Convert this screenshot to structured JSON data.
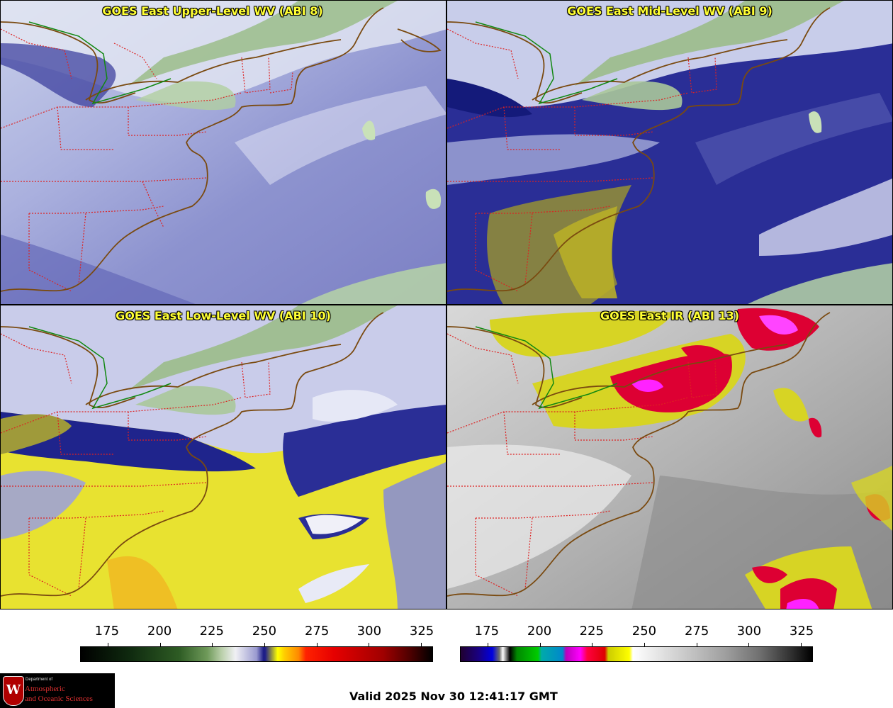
{
  "panels": [
    {
      "title": "GOES East Upper-Level WV (ABI 8)"
    },
    {
      "title": "GOES East Mid-Level WV (ABI 9)"
    },
    {
      "title": "GOES East Low-Level WV (ABI 10)"
    },
    {
      "title": "GOES East IR (ABI 13)"
    }
  ],
  "colorbars": {
    "wv": {
      "ticks": [
        "175",
        "200",
        "225",
        "250",
        "275",
        "300",
        "325"
      ]
    },
    "ir": {
      "ticks": [
        "175",
        "200",
        "225",
        "250",
        "275",
        "300",
        "325"
      ]
    }
  },
  "logo": {
    "dept_line": "Department of",
    "line1": "Atmospheric",
    "line2": "and Oceanic Sciences",
    "crest_letter": "W"
  },
  "valid_text": "Valid 2025 Nov 30 12:41:17 GMT",
  "colors": {
    "title": "#ffff33",
    "state_borders": "#dd2222",
    "coastline": "#7a4a10",
    "intl_border": "#118811"
  }
}
